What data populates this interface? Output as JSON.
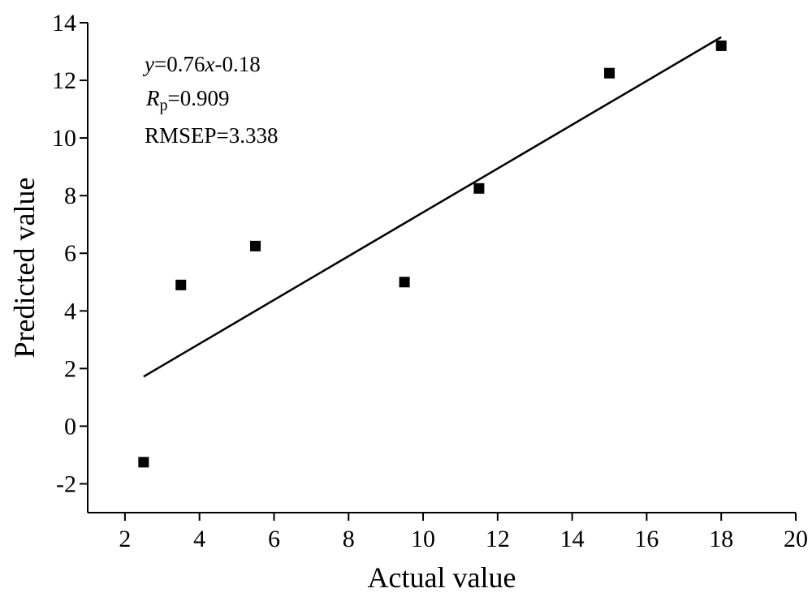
{
  "chart_data": {
    "type": "scatter",
    "title": "",
    "xlabel": "Actual value",
    "ylabel": "Predicted value",
    "xlim": [
      1,
      20
    ],
    "ylim": [
      -3,
      14
    ],
    "xticks": [
      2,
      4,
      6,
      8,
      10,
      12,
      14,
      16,
      18,
      20
    ],
    "yticks": [
      -2,
      0,
      2,
      4,
      6,
      8,
      10,
      12,
      14
    ],
    "grid": false,
    "points": [
      {
        "x": 2.5,
        "y": -1.25
      },
      {
        "x": 3.5,
        "y": 4.9
      },
      {
        "x": 5.5,
        "y": 6.25
      },
      {
        "x": 9.5,
        "y": 5.0
      },
      {
        "x": 11.5,
        "y": 8.25
      },
      {
        "x": 15.0,
        "y": 12.25
      },
      {
        "x": 18.0,
        "y": 13.2
      }
    ],
    "fit_line": {
      "slope": 0.76,
      "intercept": -0.18,
      "x_range": [
        2.5,
        18.0
      ]
    },
    "annotations": {
      "equation_var_y": "y",
      "equation_mid": "=0.76",
      "equation_var_x": "x",
      "equation_end": "-0.18",
      "r_symbol": "R",
      "r_subscript": "p",
      "r_value": "=0.909",
      "rmsep": "RMSEP=3.338"
    },
    "marker_color": "#000000",
    "line_color": "#000000"
  }
}
